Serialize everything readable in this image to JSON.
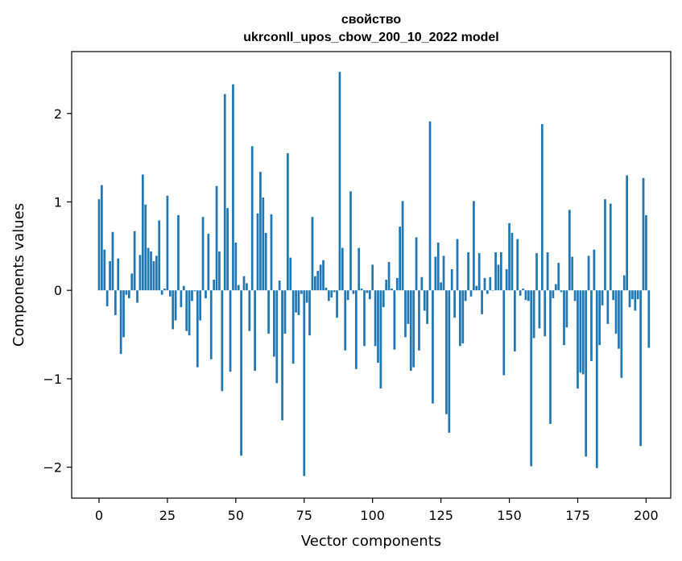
{
  "chart_data": {
    "type": "bar",
    "title": "свойство",
    "subtitle": "ukrconll_upos_cbow_200_10_2022 model",
    "xlabel": "Vector components",
    "ylabel": "Components values",
    "xlim": [
      -10,
      209
    ],
    "ylim": [
      -2.35,
      2.7
    ],
    "xticks": [
      0,
      25,
      50,
      75,
      100,
      125,
      150,
      175,
      200
    ],
    "yticks": [
      -2,
      -1,
      0,
      1,
      2
    ],
    "ytick_labels": [
      "−2",
      "−1",
      "0",
      "1",
      "2"
    ],
    "bar_color": "#1f77b4",
    "grid": false,
    "values": [
      1.03,
      1.19,
      0.46,
      -0.18,
      0.33,
      0.66,
      -0.28,
      0.36,
      -0.72,
      -0.53,
      -0.05,
      -0.09,
      0.19,
      0.67,
      -0.14,
      0.4,
      1.31,
      0.97,
      0.48,
      0.44,
      0.33,
      0.39,
      0.79,
      -0.05,
      0.02,
      1.07,
      -0.07,
      -0.44,
      -0.34,
      0.85,
      -0.19,
      0.05,
      -0.46,
      -0.51,
      -0.12,
      -0.01,
      -0.87,
      -0.34,
      0.83,
      -0.09,
      0.64,
      -0.78,
      0.12,
      1.18,
      0.44,
      -1.14,
      2.22,
      0.93,
      -0.92,
      2.33,
      0.54,
      0.06,
      -1.87,
      0.16,
      0.08,
      -0.46,
      1.63,
      -0.91,
      0.87,
      1.34,
      1.05,
      0.65,
      -0.49,
      0.86,
      -0.75,
      -1.05,
      0.11,
      -1.47,
      -0.49,
      1.55,
      0.37,
      -0.83,
      -0.25,
      -0.28,
      -0.04,
      -2.1,
      -0.14,
      -0.51,
      0.83,
      0.16,
      0.22,
      0.29,
      0.34,
      0.03,
      -0.12,
      -0.08,
      -0.02,
      -0.31,
      2.47,
      0.48,
      -0.68,
      -0.11,
      1.12,
      -0.04,
      -0.89,
      0.48,
      0.02,
      -0.63,
      -0.03,
      -0.1,
      0.29,
      -0.63,
      -0.82,
      -1.11,
      -0.19,
      0.12,
      0.32,
      0.02,
      -0.67,
      0.14,
      0.72,
      1.01,
      -0.53,
      -0.38,
      -0.91,
      -0.87,
      0.6,
      -0.68,
      0.15,
      -0.23,
      -0.38,
      1.91,
      -1.28,
      0.38,
      0.54,
      0.09,
      0.39,
      -1.4,
      -1.61,
      0.24,
      -0.31,
      0.58,
      -0.63,
      -0.6,
      -0.12,
      0.43,
      -0.07,
      1.01,
      0.05,
      0.42,
      -0.27,
      0.14,
      -0.04,
      0.15,
      0.0,
      0.43,
      0.29,
      0.43,
      -0.96,
      0.24,
      0.76,
      0.65,
      -0.69,
      0.58,
      -0.06,
      0.02,
      -0.11,
      -0.12,
      -1.99,
      -0.54,
      0.42,
      -0.43,
      1.88,
      -0.52,
      0.43,
      -1.51,
      -0.09,
      0.07,
      0.31,
      -0.02,
      -0.62,
      -0.42,
      0.91,
      0.38,
      -0.12,
      -1.11,
      -0.93,
      -0.95,
      -1.88,
      0.39,
      -0.8,
      0.46,
      -2.01,
      -0.62,
      -0.17,
      1.03,
      -0.38,
      0.98,
      -0.11,
      -0.49,
      -0.66,
      -0.99,
      0.17,
      1.3,
      -0.19,
      -0.1,
      -0.23,
      -0.1,
      -1.76,
      1.27,
      0.85,
      -0.65
    ]
  }
}
